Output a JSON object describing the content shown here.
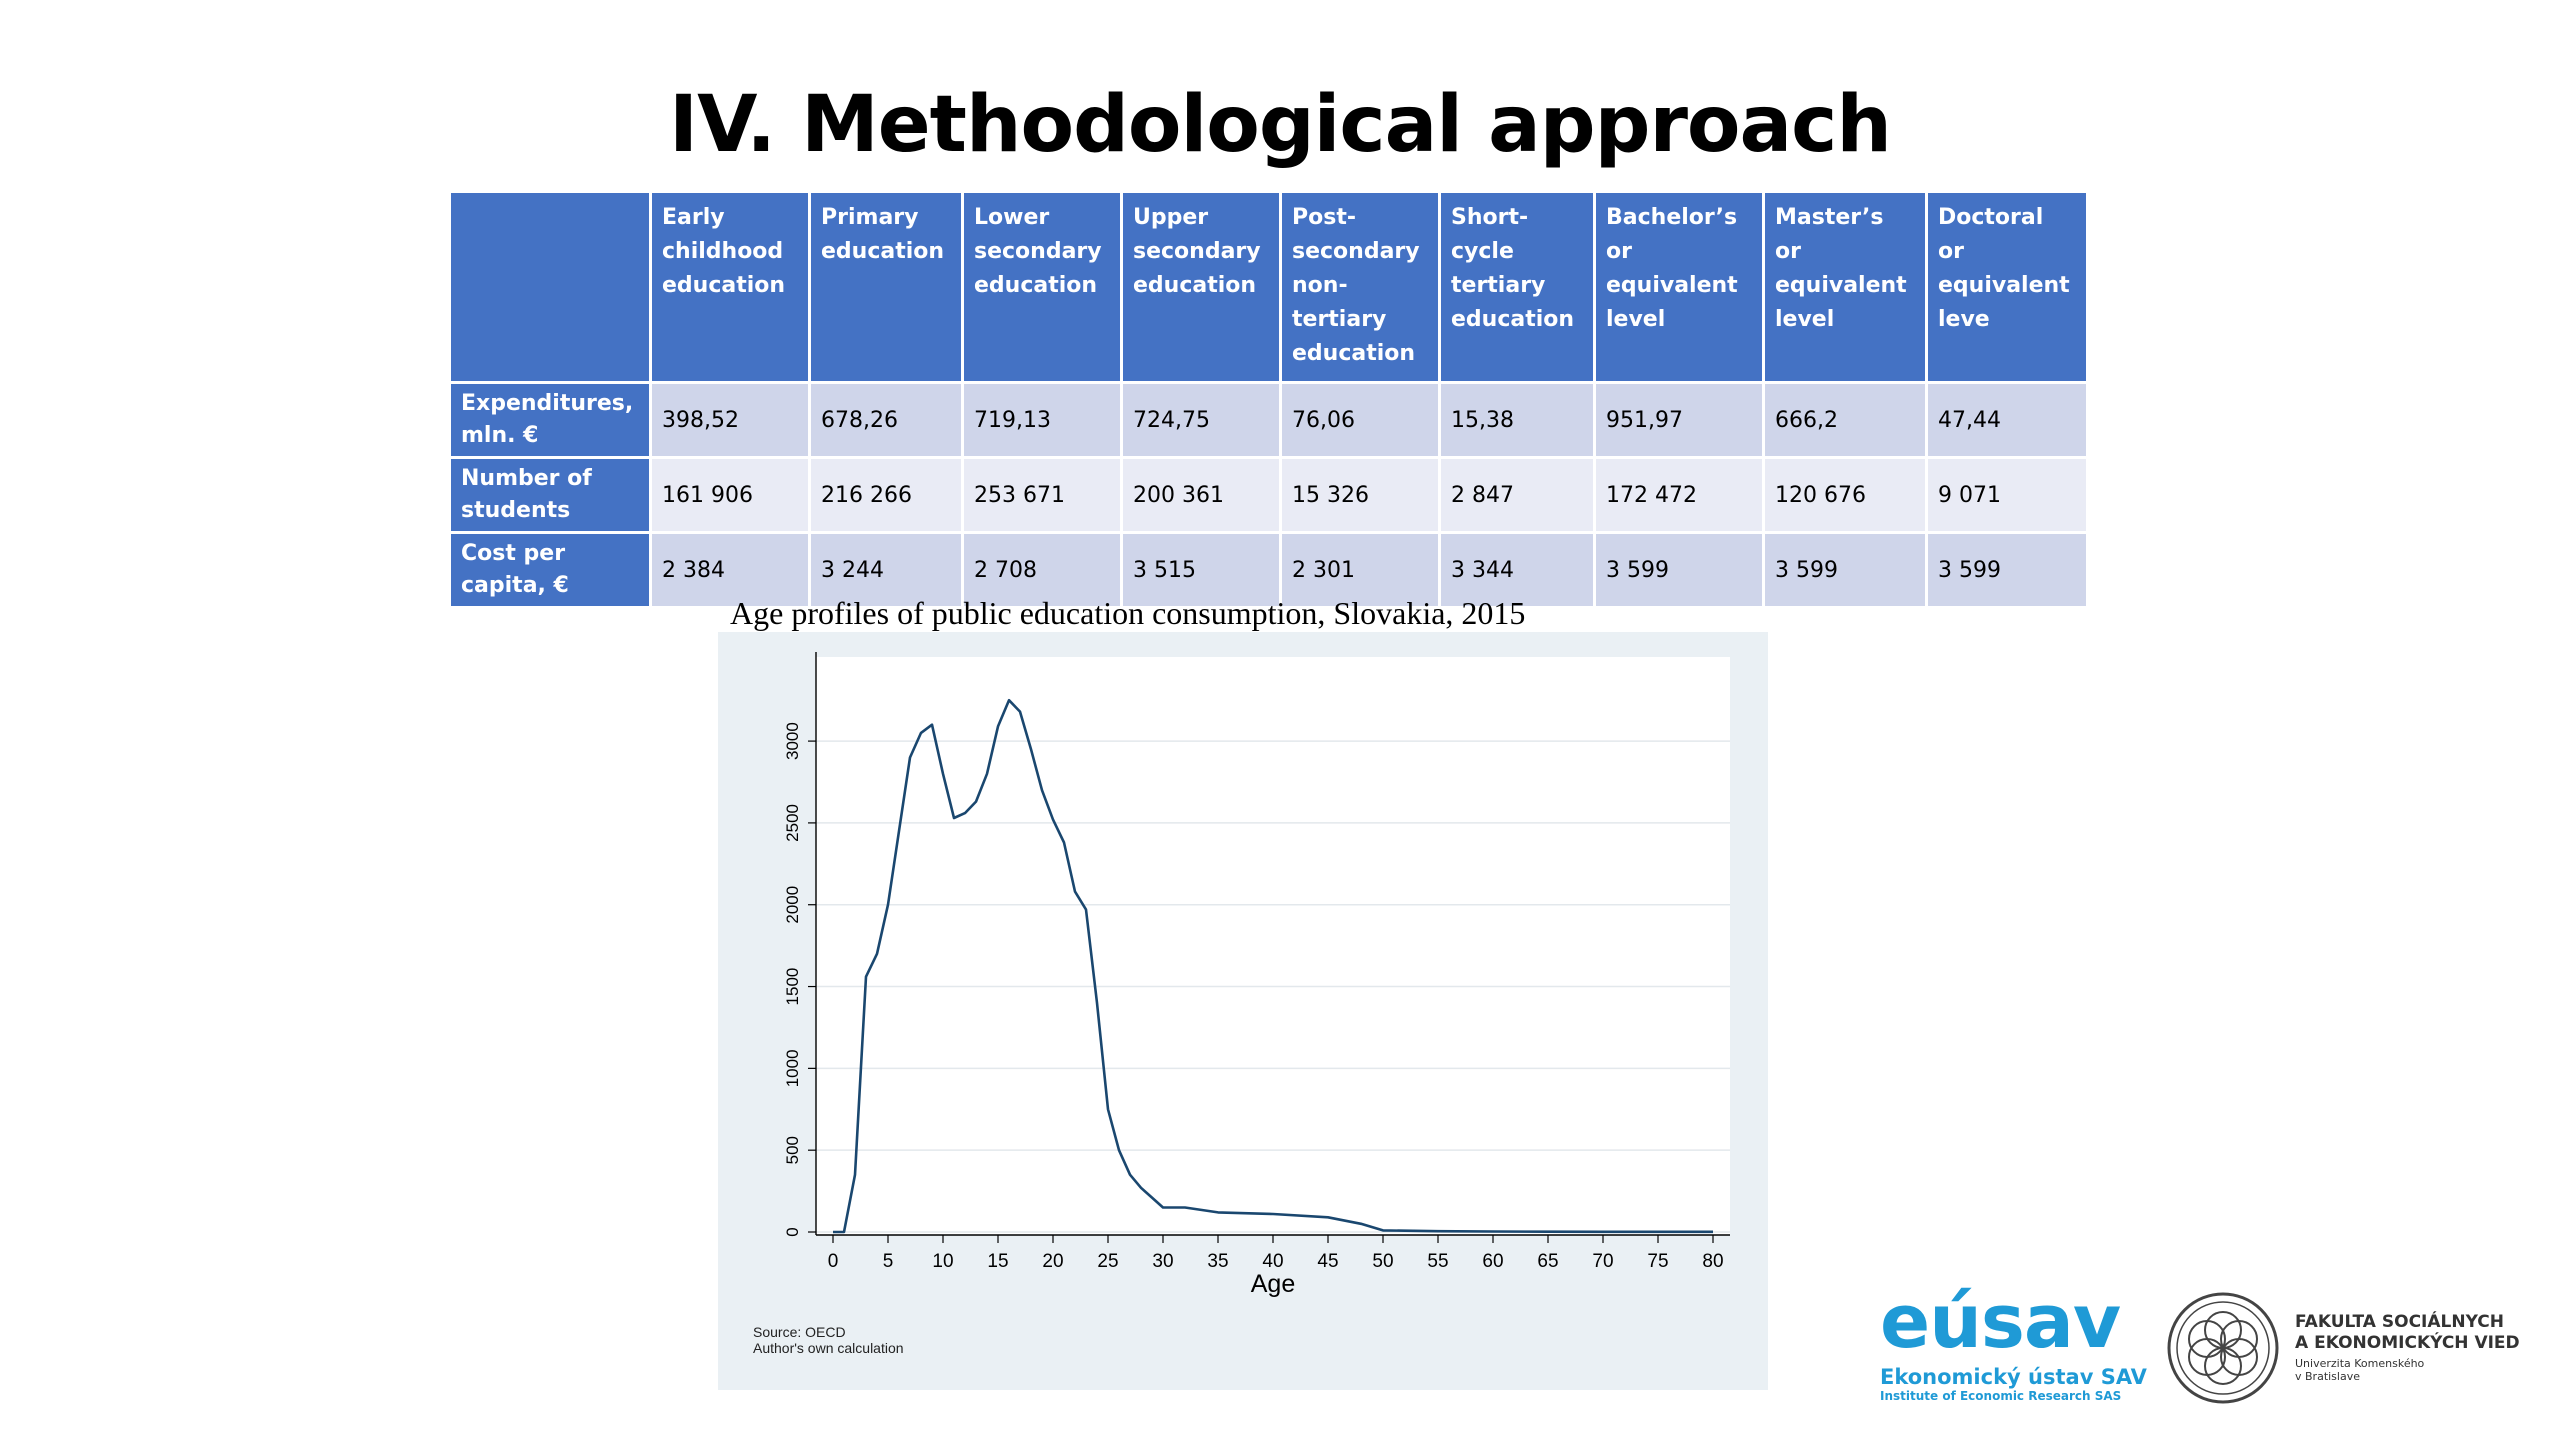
{
  "slide": {
    "title": "IV. Methodological approach"
  },
  "table": {
    "headers": [
      "",
      "Early childhood education",
      "Primary education",
      "Lower secondary education",
      "Upper secondary education",
      "Post-secondary non-tertiary education",
      "Short-cycle tertiary education",
      "Bachelor’s or equivalent level",
      "Master’s or equivalent level",
      "Doctoral or equivalent leve"
    ],
    "rows": [
      {
        "label": "Expenditures, mln. €",
        "values": [
          "398,52",
          "678,26",
          "719,13",
          "724,75",
          "76,06",
          "15,38",
          "951,97",
          "666,2",
          "47,44"
        ]
      },
      {
        "label": "Number of students",
        "values": [
          "161 906",
          "216 266",
          "253 671",
          "200 361",
          "15 326",
          "2 847",
          "172 472",
          "120 676",
          "9 071"
        ]
      },
      {
        "label": "Cost per capita, €",
        "values": [
          "2 384",
          "3 244",
          "2 708",
          "3 515",
          "2 301",
          "3 344",
          "3 599",
          "3 599",
          "3 599"
        ]
      }
    ]
  },
  "chart_data": {
    "type": "line",
    "title": "Age profiles of public education consumption, Slovakia, 2015",
    "xlabel": "Age",
    "ylabel": "",
    "xlim": [
      0,
      80
    ],
    "ylim": [
      0,
      3300
    ],
    "xticks": [
      "0",
      "5",
      "10",
      "15",
      "20",
      "25",
      "30",
      "35",
      "40",
      "45",
      "50",
      "55",
      "60",
      "65",
      "70",
      "75",
      "80"
    ],
    "yticks": [
      "0",
      "500",
      "1000",
      "1500",
      "2000",
      "2500",
      "3000"
    ],
    "grid": "horizontal",
    "line_color": "#1A476F",
    "series": [
      {
        "x": [
          0,
          1,
          2,
          3,
          4,
          5,
          6,
          7,
          8,
          9,
          10,
          11,
          12,
          13,
          14,
          15,
          16,
          17,
          18,
          19,
          20,
          21,
          22,
          23,
          24,
          25,
          26,
          27,
          28,
          29,
          30,
          32,
          35,
          40,
          45,
          48,
          50,
          55,
          60,
          65,
          70,
          75,
          80
        ],
        "values": [
          0,
          0,
          350,
          1560,
          1700,
          2000,
          2450,
          2900,
          3050,
          3100,
          2800,
          2530,
          2560,
          2630,
          2800,
          3090,
          3250,
          3180,
          2950,
          2700,
          2520,
          2380,
          2080,
          1970,
          1400,
          750,
          500,
          350,
          270,
          210,
          150,
          150,
          120,
          110,
          90,
          50,
          10,
          5,
          3,
          2,
          1,
          1,
          1
        ]
      }
    ],
    "notes": [
      "Source: OECD",
      "Author's own calculation"
    ]
  },
  "logos": {
    "eusav_word": "eúsav",
    "eusav_line1": "Ekonomický ústav SAV",
    "eusav_line2": "Institute of Economic Research SAS",
    "fsev_line1": "FAKULTA SOCIÁLNYCH",
    "fsev_line2": "A EKONOMICKÝCH VIED",
    "fsev_line3": "Univerzita Komenského",
    "fsev_line4": "v Bratislave"
  }
}
